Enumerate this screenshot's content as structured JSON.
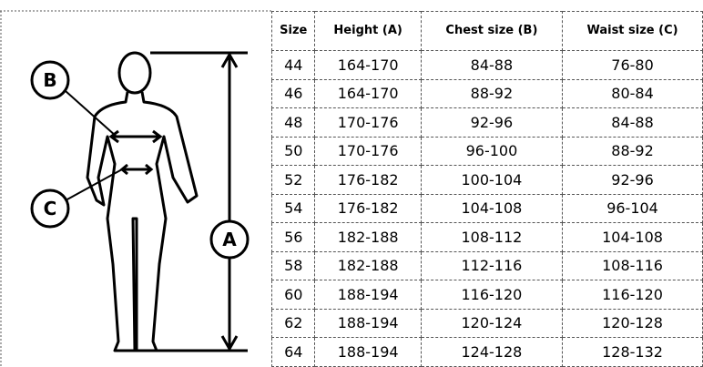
{
  "diagram": {
    "labels": [
      "B",
      "C",
      "A"
    ]
  },
  "table": {
    "header": [
      "Size",
      "Height (A)",
      "Chest size (B)",
      "Waist size (C)"
    ],
    "rows": [
      [
        "44",
        "164-170",
        "84-88",
        "76-80"
      ],
      [
        "46",
        "164-170",
        "88-92",
        "80-84"
      ],
      [
        "48",
        "170-176",
        "92-96",
        "84-88"
      ],
      [
        "50",
        "170-176",
        "96-100",
        "88-92"
      ],
      [
        "52",
        "176-182",
        "100-104",
        "92-96"
      ],
      [
        "54",
        "176-182",
        "104-108",
        "96-104"
      ],
      [
        "56",
        "182-188",
        "108-112",
        "104-108"
      ],
      [
        "58",
        "182-188",
        "112-116",
        "108-116"
      ],
      [
        "60",
        "188-194",
        "116-120",
        "116-120"
      ],
      [
        "62",
        "188-194",
        "120-124",
        "120-128"
      ],
      [
        "64",
        "188-194",
        "124-128",
        "128-132"
      ]
    ]
  }
}
